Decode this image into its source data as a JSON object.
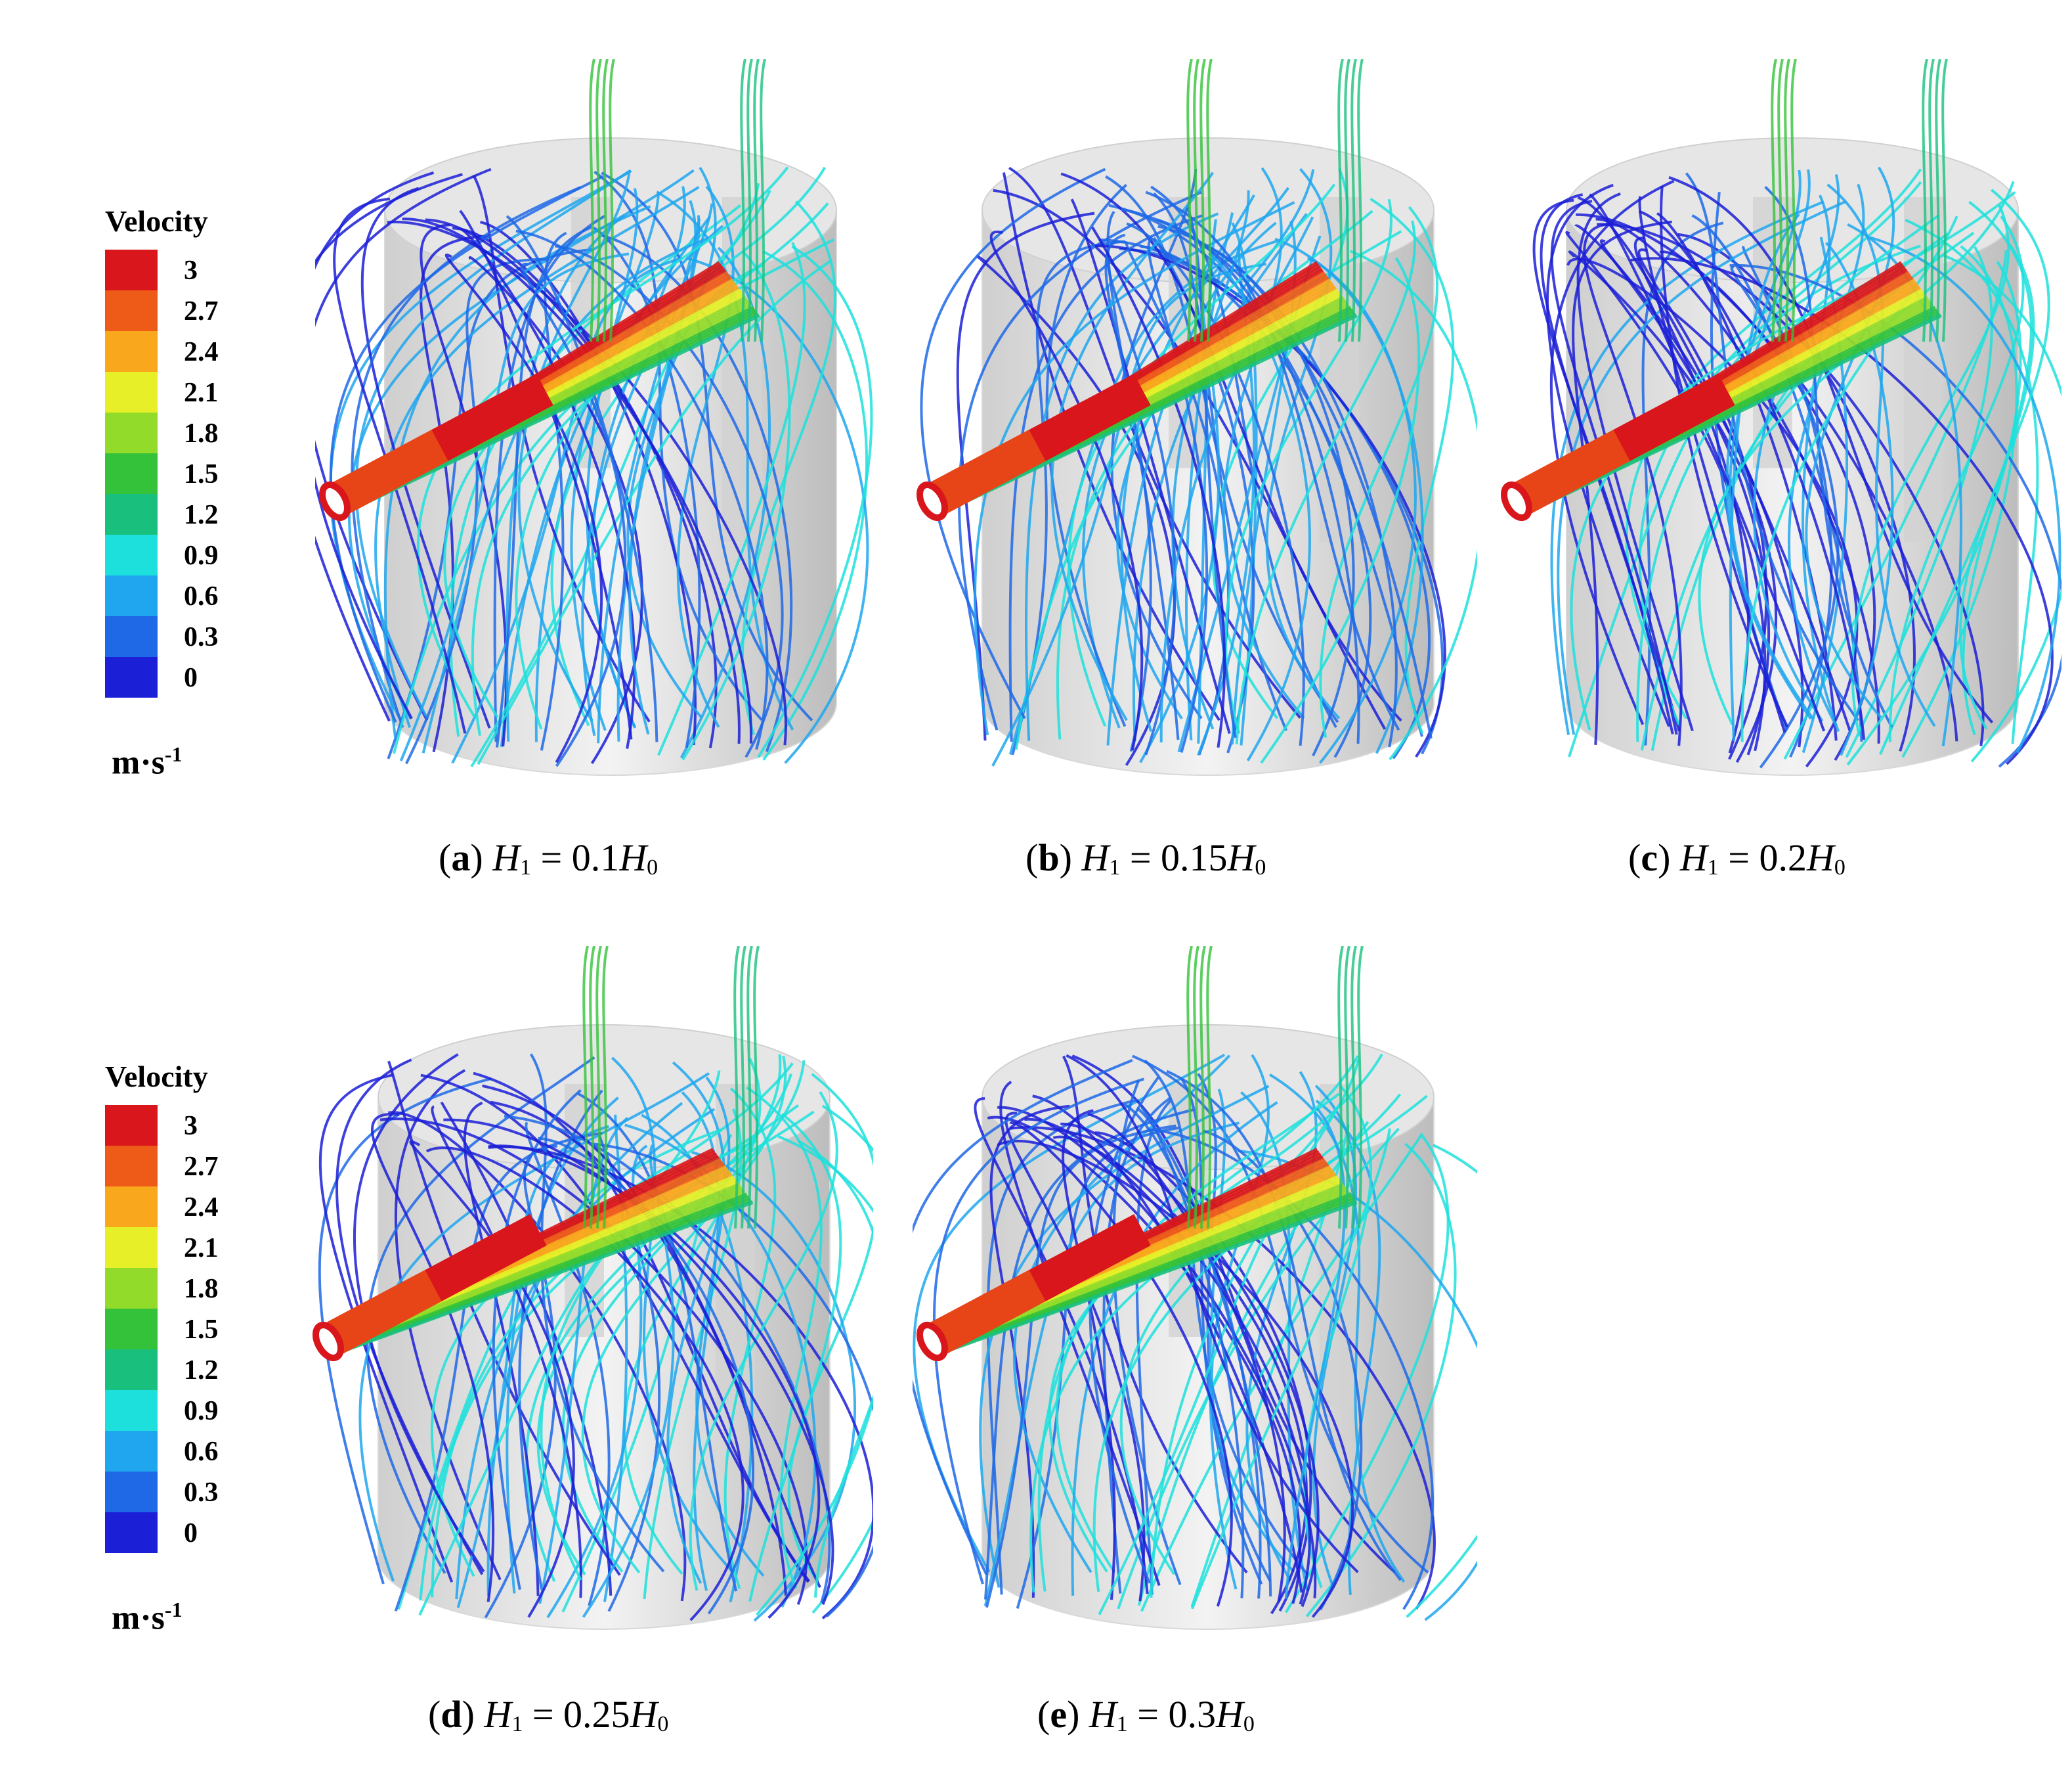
{
  "legends": [
    {
      "title": "Velocity",
      "unit": "m·s",
      "unit_exp": "-1",
      "entries": [
        "3",
        "2.7",
        "2.4",
        "2.1",
        "1.8",
        "1.5",
        "1.2",
        "0.9",
        "0.6",
        "0.3",
        "0"
      ]
    },
    {
      "title": "Velocity",
      "unit": "m·s",
      "unit_exp": "-1",
      "entries": [
        "3",
        "2.7",
        "2.4",
        "2.1",
        "1.8",
        "1.5",
        "1.2",
        "0.9",
        "0.6",
        "0.3",
        "0"
      ]
    }
  ],
  "colorbar": [
    "#d9161b",
    "#ee5a18",
    "#f9a71c",
    "#e6ef27",
    "#93db2a",
    "#34c23a",
    "#19c07d",
    "#1de0dc",
    "#1fa6ef",
    "#1f68e6",
    "#1b1fd6"
  ],
  "panels": [
    {
      "label": "a",
      "var": "H",
      "sub1": "1",
      "eq": " = ",
      "coef": "0.1",
      "var2": "H",
      "sub2": "0"
    },
    {
      "label": "b",
      "var": "H",
      "sub1": "1",
      "eq": " = ",
      "coef": "0.15",
      "var2": "H",
      "sub2": "0"
    },
    {
      "label": "c",
      "var": "H",
      "sub1": "1",
      "eq": " = ",
      "coef": "0.2",
      "var2": "H",
      "sub2": "0"
    },
    {
      "label": "d",
      "var": "H",
      "sub1": "1",
      "eq": " = ",
      "coef": "0.25",
      "var2": "H",
      "sub2": "0"
    },
    {
      "label": "e",
      "var": "H",
      "sub1": "1",
      "eq": " = ",
      "coef": "0.3",
      "var2": "H",
      "sub2": "0"
    }
  ]
}
